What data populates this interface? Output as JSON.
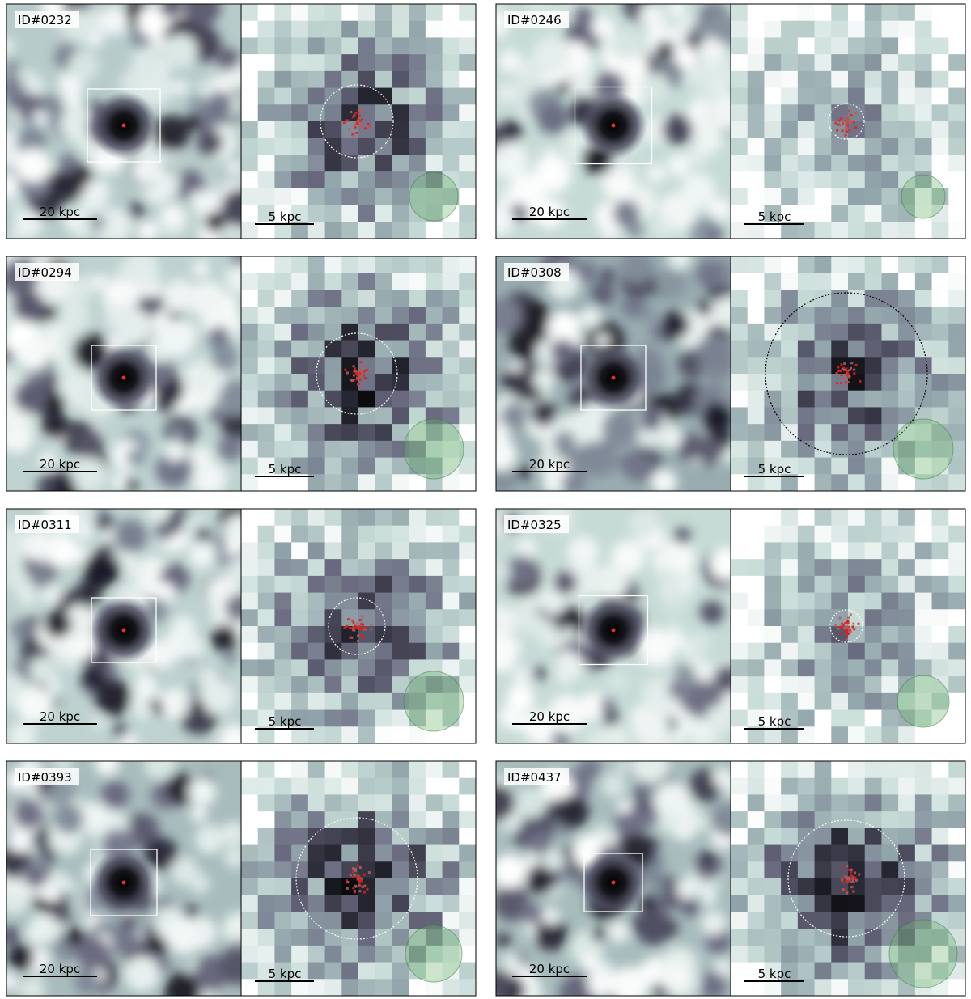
{
  "panels": [
    {
      "id": "ID#0232",
      "left_scale": "20 kpc",
      "right_scale": "5 kpc"
    },
    {
      "id": "ID#0246",
      "left_scale": "20 kpc",
      "right_scale": "5 kpc"
    },
    {
      "id": "ID#0294",
      "left_scale": "20 kpc",
      "right_scale": "5 kpc"
    },
    {
      "id": "ID#0308",
      "left_scale": "20 kpc",
      "right_scale": "5 kpc"
    },
    {
      "id": "ID#0311",
      "left_scale": "20 kpc",
      "right_scale": "5 kpc"
    },
    {
      "id": "ID#0325",
      "left_scale": "20 kpc",
      "right_scale": "5 kpc"
    },
    {
      "id": "ID#0393",
      "left_scale": "20 kpc",
      "right_scale": "5 kpc"
    },
    {
      "id": "ID#0437",
      "left_scale": "20 kpc",
      "right_scale": "5 kpc"
    }
  ]
}
